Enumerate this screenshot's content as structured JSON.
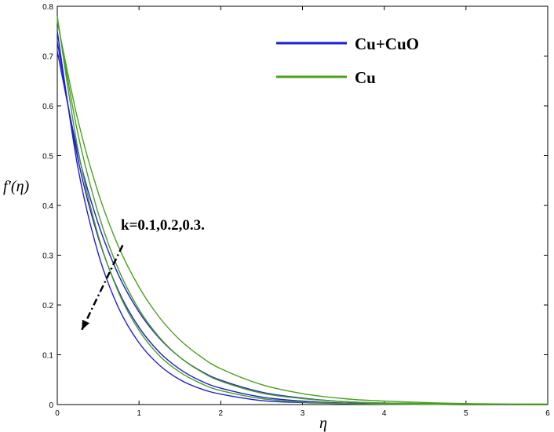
{
  "chart_data": {
    "type": "line",
    "xlabel": "η",
    "ylabel": "f′(η)",
    "xlim": [
      0,
      6
    ],
    "ylim": [
      0,
      0.8
    ],
    "x_ticks": [
      "0",
      "1",
      "2",
      "3",
      "4",
      "5",
      "6"
    ],
    "y_ticks": [
      "0",
      "0.1",
      "0.2",
      "0.3",
      "0.4",
      "0.5",
      "0.6",
      "0.7",
      "0.8"
    ],
    "grid": false,
    "legend_position": "top-right",
    "legend": [
      {
        "label": "Cu+CuO",
        "color": "#1f1fd6"
      },
      {
        "label": "Cu",
        "color": "#4aa01f"
      }
    ],
    "annotation": {
      "text": "k=0.1,0.2,0.3.",
      "arrow_from": [
        0.8,
        0.32
      ],
      "arrow_to": [
        0.3,
        0.15
      ]
    },
    "series": [
      {
        "name": "Cu+CuO",
        "color": "#1f1fd6",
        "x": [
          0,
          0.25,
          0.5,
          0.75,
          1,
          1.25,
          1.5,
          1.75,
          2,
          2.5,
          3,
          3.5,
          4,
          5,
          6
        ],
        "y": [
          0.75,
          0.478,
          0.304,
          0.194,
          0.124,
          0.079,
          0.05,
          0.032,
          0.021,
          0.008,
          0.004,
          0.002,
          0.001,
          0.0,
          0.0
        ]
      },
      {
        "name": "Cu+CuO",
        "color": "#1f1fd6",
        "x": [
          0,
          0.25,
          0.5,
          0.75,
          1,
          1.25,
          1.5,
          1.75,
          2,
          2.5,
          3,
          3.5,
          4,
          5,
          6
        ],
        "y": [
          0.73,
          0.495,
          0.336,
          0.228,
          0.155,
          0.105,
          0.071,
          0.048,
          0.033,
          0.015,
          0.007,
          0.003,
          0.002,
          0.0,
          0.0
        ]
      },
      {
        "name": "Cu+CuO",
        "color": "#1f1fd6",
        "x": [
          0,
          0.25,
          0.5,
          0.75,
          1,
          1.25,
          1.5,
          1.75,
          2,
          2.5,
          3,
          3.5,
          4,
          5,
          6
        ],
        "y": [
          0.71,
          0.508,
          0.364,
          0.26,
          0.186,
          0.133,
          0.095,
          0.068,
          0.049,
          0.025,
          0.013,
          0.006,
          0.003,
          0.001,
          0.0
        ]
      },
      {
        "name": "Cu",
        "color": "#4aa01f",
        "x": [
          0,
          0.25,
          0.5,
          0.75,
          1,
          1.25,
          1.5,
          1.75,
          2,
          2.5,
          3,
          3.5,
          4,
          5,
          6
        ],
        "y": [
          0.78,
          0.515,
          0.34,
          0.225,
          0.149,
          0.098,
          0.065,
          0.043,
          0.028,
          0.012,
          0.005,
          0.002,
          0.001,
          0.0,
          0.0
        ]
      },
      {
        "name": "Cu",
        "color": "#4aa01f",
        "x": [
          0,
          0.25,
          0.5,
          0.75,
          1,
          1.25,
          1.5,
          1.75,
          2,
          2.5,
          3,
          3.5,
          4,
          5,
          6
        ],
        "y": [
          0.775,
          0.546,
          0.385,
          0.271,
          0.191,
          0.135,
          0.095,
          0.067,
          0.047,
          0.023,
          0.012,
          0.006,
          0.003,
          0.001,
          0.0
        ]
      },
      {
        "name": "Cu",
        "color": "#4aa01f",
        "x": [
          0,
          0.25,
          0.5,
          0.75,
          1,
          1.25,
          1.5,
          1.75,
          2,
          2.5,
          3,
          3.5,
          4,
          5,
          6
        ],
        "y": [
          0.77,
          0.573,
          0.426,
          0.317,
          0.236,
          0.175,
          0.13,
          0.097,
          0.072,
          0.04,
          0.022,
          0.012,
          0.007,
          0.002,
          0.001
        ]
      }
    ]
  }
}
